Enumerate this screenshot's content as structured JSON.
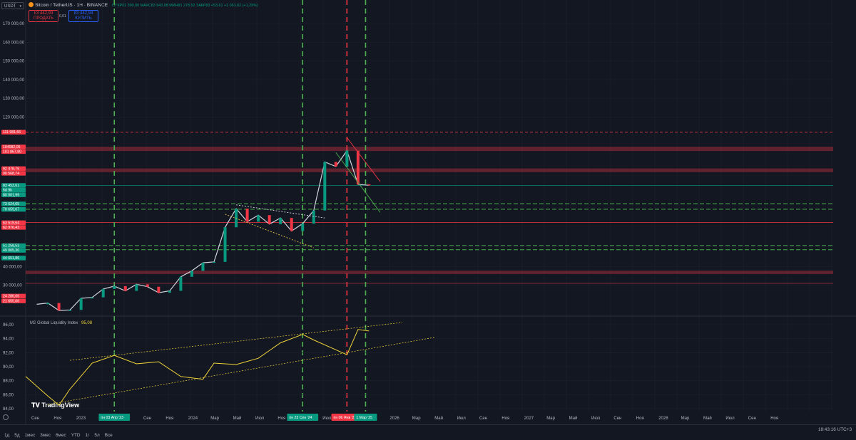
{
  "header": {
    "symbol_select": "USDT",
    "title": "Bitcoin / TetherUS · 1H · BINANCE",
    "ohlc_text": "ОТКР82 390,00 МАКС83 943,08 МИН81 278,52 ЗАКР83 453,61 +1 063,62 (+1,29%)",
    "sell_price": "83 442,93",
    "sell_label": "ПРОДАТЬ",
    "spread": "0,01",
    "buy_price": "83 442,94",
    "buy_label": "КУПИТЬ"
  },
  "main_axis_ticks": [
    "170 000,00",
    "160 000,00",
    "150 000,00",
    "140 000,00",
    "130 000,00",
    "120 000,00",
    "40 000,00",
    "30 000,00"
  ],
  "price_labels": [
    {
      "text": "111 981,66",
      "color": "#f23645"
    },
    {
      "text": "104082,05",
      "color": "#f23645"
    },
    {
      "text": "101 867,80",
      "color": "#f23645"
    },
    {
      "text": "92 478,76",
      "color": "#f23645"
    },
    {
      "text": "90 568,74",
      "color": "#f23645"
    },
    {
      "text": "83 453,61",
      "color": "#089981"
    },
    {
      "text": "6d 9h",
      "color": "#089981"
    },
    {
      "text": "80 001,99",
      "color": "#089981"
    },
    {
      "text": "73 624,05",
      "color": "#089981"
    },
    {
      "text": "70 659,07",
      "color": "#089981"
    },
    {
      "text": "63 519,64",
      "color": "#f23645"
    },
    {
      "text": "62 976,43",
      "color": "#f23645"
    },
    {
      "text": "51 258,53",
      "color": "#089981"
    },
    {
      "text": "49 005,30",
      "color": "#089981"
    },
    {
      "text": "44 651,86",
      "color": "#089981"
    },
    {
      "text": "24 286,66",
      "color": "#f23645"
    },
    {
      "text": "21 655,06",
      "color": "#f23645"
    }
  ],
  "indicator": {
    "label": "M2 Global Liquidity Index",
    "value": "95,08",
    "axis_ticks": [
      "96,00",
      "94,00",
      "92,00",
      "90,00",
      "88,00",
      "86,00",
      "84,00"
    ]
  },
  "time_axis": {
    "ticks": [
      "Сен",
      "Ноя",
      "2023",
      "Мар",
      "Июл",
      "Сен",
      "Ноя",
      "2024",
      "Мар",
      "Май",
      "Июл",
      "Ноя",
      "Май",
      "Июл",
      "Сен",
      "Ноя",
      "2026",
      "Мар",
      "Май",
      "Июл",
      "Сен",
      "Ноя",
      "2027",
      "Мар",
      "Май",
      "Июл",
      "Сен",
      "Ноя",
      "2028",
      "Мар",
      "Май",
      "Июл",
      "Сен",
      "Ноя"
    ],
    "highlights": [
      {
        "text": "пн 03 Апр '23",
        "color": "#089981"
      },
      {
        "text": "пн 23 Сен '24",
        "color": "#089981"
      },
      {
        "text": "пн 06 Янв '25",
        "color": "#f23645"
      },
      {
        "text": "1 Мар '25",
        "color": "#089981"
      }
    ]
  },
  "bottom_toolbar": {
    "ranges": [
      "1д",
      "5д",
      "1мес",
      "3мес",
      "6мес",
      "YTD",
      "1г",
      "5л",
      "Все"
    ],
    "clock": "18:43:16 UTC+3"
  },
  "logo_text": "TradingView",
  "colors": {
    "background": "#131722",
    "green": "#089981",
    "red": "#f23645",
    "dash_green": "#4caf50",
    "dash_red": "#f23645",
    "m2": "#f0d43a"
  },
  "chart_data": [
    {
      "type": "line",
      "title": "Bitcoin / TetherUS · 1H · BINANCE",
      "series": [
        {
          "name": "BTCUSDT",
          "x": [
            "2022-09",
            "2022-10",
            "2022-11",
            "2022-12",
            "2023-01",
            "2023-02",
            "2023-03",
            "2023-04",
            "2023-05",
            "2023-06",
            "2023-07",
            "2023-08",
            "2023-09",
            "2023-10",
            "2023-11",
            "2023-12",
            "2024-01",
            "2024-02",
            "2024-03",
            "2024-04",
            "2024-05",
            "2024-06",
            "2024-07",
            "2024-08",
            "2024-09",
            "2024-10",
            "2024-11",
            "2024-12",
            "2025-01",
            "2025-02",
            "2025-03"
          ],
          "values": [
            19800,
            20500,
            16500,
            16800,
            23000,
            23500,
            28000,
            29500,
            27000,
            30500,
            29200,
            26000,
            27000,
            34500,
            37700,
            42000,
            42500,
            61000,
            71000,
            64000,
            67500,
            62700,
            66000,
            59000,
            63000,
            70000,
            96000,
            93500,
            102000,
            84000,
            83450
          ]
        }
      ],
      "ylim": [
        15000,
        175000
      ]
    },
    {
      "type": "line",
      "title": "M2 Global Liquidity Index",
      "series": [
        {
          "name": "M2 Global Liquidity Index",
          "x": [
            "2022-08",
            "2022-10",
            "2022-11",
            "2022-12",
            "2023-02",
            "2023-04",
            "2023-06",
            "2023-08",
            "2023-10",
            "2023-12",
            "2024-01",
            "2024-03",
            "2024-05",
            "2024-07",
            "2024-09",
            "2024-10",
            "2024-12",
            "2025-01",
            "2025-02",
            "2025-03"
          ],
          "values": [
            88.6,
            85.8,
            84.5,
            86.8,
            90.5,
            91.6,
            90.4,
            90.7,
            88.6,
            88.2,
            90.5,
            90.3,
            91.2,
            93.4,
            94.6,
            93.8,
            92.4,
            91.7,
            95.3,
            95.08
          ]
        }
      ],
      "ylim": [
        83.6,
        96.8
      ]
    }
  ]
}
